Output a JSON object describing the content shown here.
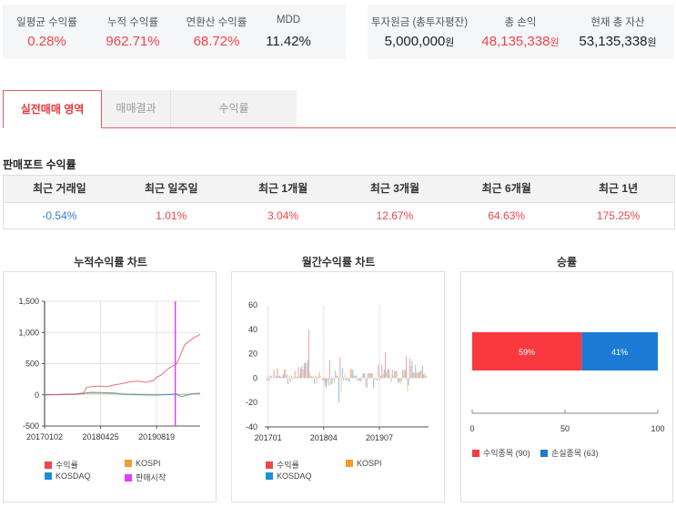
{
  "summary_left": [
    {
      "label": "일평균 수익률",
      "value": "0.28%",
      "tone": "red"
    },
    {
      "label": "누적 수익률",
      "value": "962.71%",
      "tone": "red"
    },
    {
      "label": "연환산 수익률",
      "value": "68.72%",
      "tone": "red"
    },
    {
      "label": "MDD",
      "value": "11.42%",
      "tone": "dark"
    }
  ],
  "summary_right": [
    {
      "label": "투자원금 (총투자평잔)",
      "value": "5,000,000",
      "unit": "원",
      "tone": "dark"
    },
    {
      "label": "총 손익",
      "value": "48,135,338",
      "unit": "원",
      "tone": "red"
    },
    {
      "label": "현재 총 자산",
      "value": "53,135,338",
      "unit": "원",
      "tone": "dark"
    }
  ],
  "tabs": [
    {
      "label": "실전매매 영역",
      "active": true
    },
    {
      "label": "매매결과",
      "active": false
    },
    {
      "label": "수익률",
      "active": false
    }
  ],
  "performance": {
    "title": "판매포트 수익률",
    "headers": [
      "최근 거래일",
      "최근 일주일",
      "최근 1개월",
      "최근 3개월",
      "최근 6개월",
      "최근 1년"
    ],
    "values": [
      "-0.54%",
      "1.01%",
      "3.04%",
      "12.67%",
      "64.63%",
      "175.25%"
    ],
    "tones": [
      "blue",
      "red",
      "red",
      "red",
      "red",
      "red"
    ]
  },
  "colors": {
    "accent_red": "#f0454b",
    "profit": "#e84a4f",
    "kospi": "#f59a2b",
    "kosdaq": "#1a8fd6",
    "sale_start": "#e040fb",
    "loss_bar": "#1c7ad4",
    "win_bar": "#f9393f"
  },
  "chart_data": [
    {
      "type": "line",
      "title": "누적수익률 차트",
      "x_ticks": [
        "20170102",
        "20180425",
        "20190819"
      ],
      "y_ticks": [
        "1,500",
        "1,000",
        "500",
        "0",
        "-500"
      ],
      "ylim": [
        -500,
        1500
      ],
      "grid": true,
      "legend": [
        "수익률",
        "KOSPI",
        "KOSDAQ",
        "판매시작"
      ],
      "series": [
        {
          "name": "수익률",
          "x_frac": [
            0,
            0.1,
            0.2,
            0.25,
            0.27,
            0.3,
            0.35,
            0.4,
            0.45,
            0.5,
            0.55,
            0.6,
            0.65,
            0.7,
            0.72,
            0.75,
            0.8,
            0.85,
            0.9,
            0.95,
            1.0
          ],
          "values": [
            0,
            5,
            15,
            30,
            120,
            130,
            140,
            130,
            160,
            180,
            210,
            220,
            200,
            230,
            280,
            320,
            430,
            500,
            800,
            900,
            970
          ]
        },
        {
          "name": "KOSPI",
          "x_frac": [
            0,
            0.2,
            0.3,
            0.5,
            0.7,
            0.85,
            1.0
          ],
          "values": [
            0,
            10,
            25,
            15,
            5,
            10,
            15
          ]
        },
        {
          "name": "KOSDAQ",
          "x_frac": [
            0,
            0.2,
            0.3,
            0.45,
            0.5,
            0.7,
            0.85,
            0.88,
            0.95,
            1.0
          ],
          "values": [
            0,
            10,
            40,
            30,
            10,
            -5,
            10,
            -30,
            20,
            25
          ]
        },
        {
          "name": "판매시작",
          "x_frac": 0.84
        }
      ]
    },
    {
      "type": "bar",
      "title": "월간수익률 차트",
      "x_ticks": [
        "201701",
        "201804",
        "201907"
      ],
      "y_ticks": [
        "60",
        "40",
        "20",
        "0",
        "-20",
        "-40"
      ],
      "ylim": [
        -40,
        60
      ],
      "legend": [
        "수익률",
        "KOSPI",
        "KOSDAQ"
      ],
      "series": [
        {
          "name": "수익률",
          "values": [
            -2,
            2,
            7,
            8,
            1,
            7,
            -5,
            2,
            6,
            9,
            10,
            13,
            40,
            1,
            2,
            5,
            -2,
            -8,
            15,
            -1,
            2,
            17,
            -2,
            -1,
            7,
            2,
            -2,
            -3,
            4,
            4,
            4,
            -1,
            11,
            11,
            21,
            8,
            7,
            6,
            -3,
            7,
            18,
            16,
            5,
            5,
            6,
            3
          ]
        },
        {
          "name": "KOSPI",
          "values": [
            2,
            2,
            1,
            2,
            2,
            7,
            2,
            -1,
            1,
            2,
            7,
            12,
            4,
            2,
            -4,
            2,
            -2,
            -3,
            -6,
            -4,
            2,
            -12,
            4,
            -3,
            8,
            2,
            -2,
            2,
            -7,
            4,
            4,
            -1,
            -2,
            3,
            5,
            2,
            2,
            6,
            -5,
            6,
            -11,
            10,
            4,
            4,
            7,
            4
          ]
        },
        {
          "name": "KOSDAQ",
          "values": [
            -2,
            0,
            2,
            2,
            3,
            3,
            -3,
            1,
            1,
            8,
            12,
            15,
            2,
            -5,
            1,
            0,
            -6,
            -6,
            -5,
            6,
            -20,
            8,
            -2,
            -3,
            7,
            2,
            -2,
            4,
            -8,
            4,
            -8,
            -2,
            2,
            7,
            7,
            -3,
            6,
            -4,
            -2,
            7,
            -6,
            14,
            11,
            5,
            10,
            2
          ]
        }
      ]
    },
    {
      "type": "bar",
      "title": "승률",
      "orientation": "horizontal-stacked",
      "x_ticks": [
        "0",
        "50",
        "100"
      ],
      "xlim": [
        0,
        100
      ],
      "series": [
        {
          "name": "수익종목 (90)",
          "value": 59,
          "label": "59%"
        },
        {
          "name": "손실종목 (63)",
          "value": 41,
          "label": "41%"
        }
      ]
    }
  ],
  "charts": {
    "cumulative": {
      "title": "누적수익률 차트",
      "legend": [
        "수익률",
        "KOSPI",
        "KOSDAQ",
        "판매시작"
      ]
    },
    "monthly": {
      "title": "월간수익률 차트",
      "legend": [
        "수익률",
        "KOSPI",
        "KOSDAQ"
      ]
    },
    "winrate": {
      "title": "승률",
      "win_label": "59%",
      "loss_label": "41%",
      "legend": [
        "수익종목 (90)",
        "손실종목 (63)"
      ]
    }
  }
}
